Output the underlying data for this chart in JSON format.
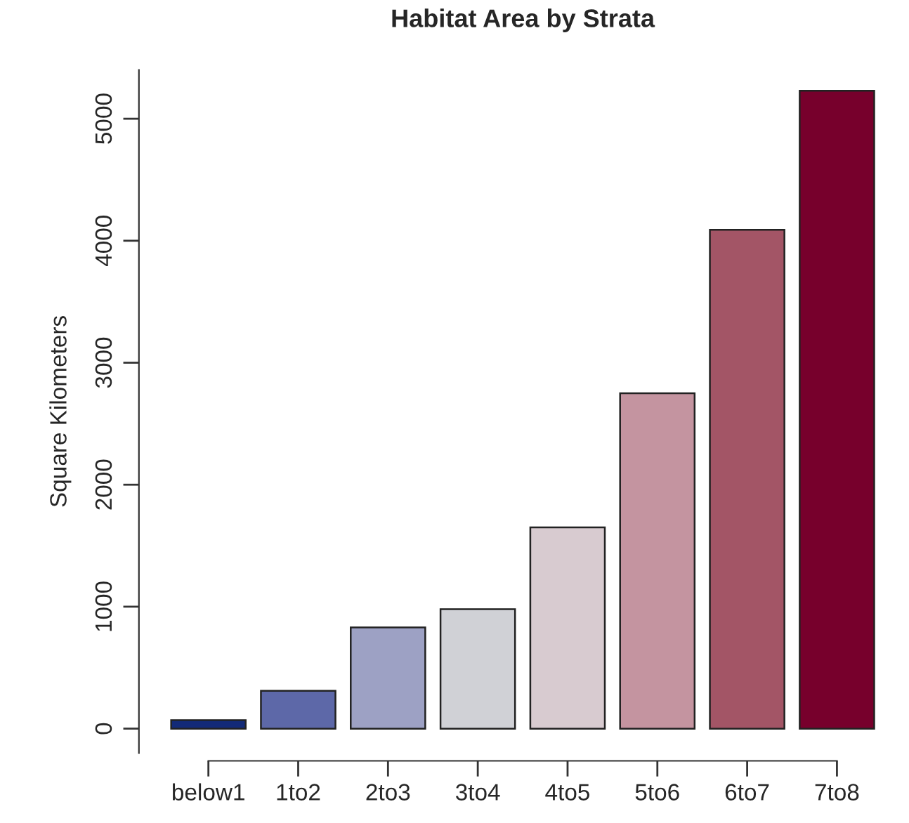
{
  "chart_data": {
    "type": "bar",
    "title": "Habitat Area by Strata",
    "ylabel": "Square Kilometers",
    "categories": [
      "below1",
      "1to2",
      "2to3",
      "3to4",
      "4to5",
      "5to6",
      "6to7",
      "7to8"
    ],
    "values": [
      70,
      310,
      830,
      980,
      1650,
      2750,
      4090,
      5230
    ],
    "colors": [
      "#132a78",
      "#5d68a8",
      "#9da1c4",
      "#d0d1d6",
      "#d8cbd0",
      "#c494a0",
      "#a35566",
      "#77002c"
    ],
    "ylim": [
      -200,
      5400
    ],
    "yticks": [
      0,
      1000,
      2000,
      3000,
      4000,
      5000
    ],
    "grid": false
  }
}
